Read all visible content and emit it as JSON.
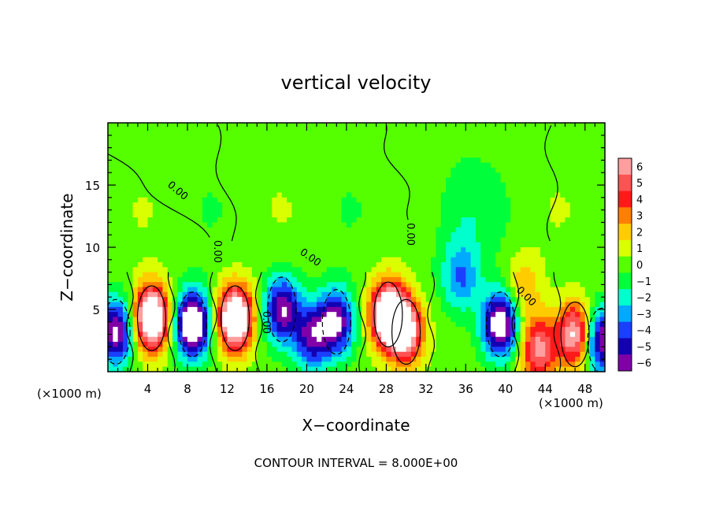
{
  "chart_data": {
    "type": "heatmap",
    "title": "vertical velocity",
    "xlabel": "X−coordinate",
    "ylabel": "Z−coordinate",
    "x_units_left": "(×1000 m)",
    "x_units_right": "(×1000 m)",
    "footer": "CONTOUR INTERVAL = 8.000E+00",
    "xlim": [
      0,
      50
    ],
    "ylim": [
      0,
      20
    ],
    "x_ticks": [
      4,
      8,
      12,
      16,
      20,
      24,
      28,
      32,
      36,
      40,
      44,
      48
    ],
    "y_ticks": [
      5,
      10,
      15
    ],
    "contour_labels": [
      "0.00",
      "0.00",
      "0.00",
      "0.00",
      "0.00",
      "0.00"
    ],
    "colorbar": {
      "ticks": [
        6,
        5,
        4,
        3,
        2,
        1,
        0,
        -1,
        -2,
        -3,
        -4,
        -5,
        -6
      ],
      "range": [
        -6,
        6
      ],
      "colors": [
        "#ff9e9e",
        "#ff5252",
        "#ff1a1a",
        "#ff7f00",
        "#ffcc00",
        "#d9ff00",
        "#55ff00",
        "#00ff3a",
        "#00ffcc",
        "#00aaff",
        "#1a3fff",
        "#1400b3",
        "#8000a8"
      ]
    },
    "features": [
      {
        "x": 0.8,
        "z": 3.2,
        "w": -7
      },
      {
        "x": 4.4,
        "z": 4.3,
        "w": 10
      },
      {
        "x": 8.5,
        "z": 3.8,
        "w": -9
      },
      {
        "x": 12.8,
        "z": 4.3,
        "w": 10
      },
      {
        "x": 17.5,
        "z": 5.0,
        "w": -6.5
      },
      {
        "x": 20.5,
        "z": 2.8,
        "w": -5.5
      },
      {
        "x": 23.0,
        "z": 4.0,
        "w": -6.5
      },
      {
        "x": 28.2,
        "z": 4.6,
        "w": 10
      },
      {
        "x": 30.0,
        "z": 3.2,
        "w": 7
      },
      {
        "x": 35.5,
        "z": 7.5,
        "w": -3.2
      },
      {
        "x": 39.5,
        "z": 3.8,
        "w": -8
      },
      {
        "x": 41.8,
        "z": 6.8,
        "w": 2.5
      },
      {
        "x": 43.3,
        "z": 1.8,
        "w": 6
      },
      {
        "x": 47.0,
        "z": 3.0,
        "w": 7
      },
      {
        "x": 49.7,
        "z": 2.5,
        "w": -7
      }
    ]
  }
}
